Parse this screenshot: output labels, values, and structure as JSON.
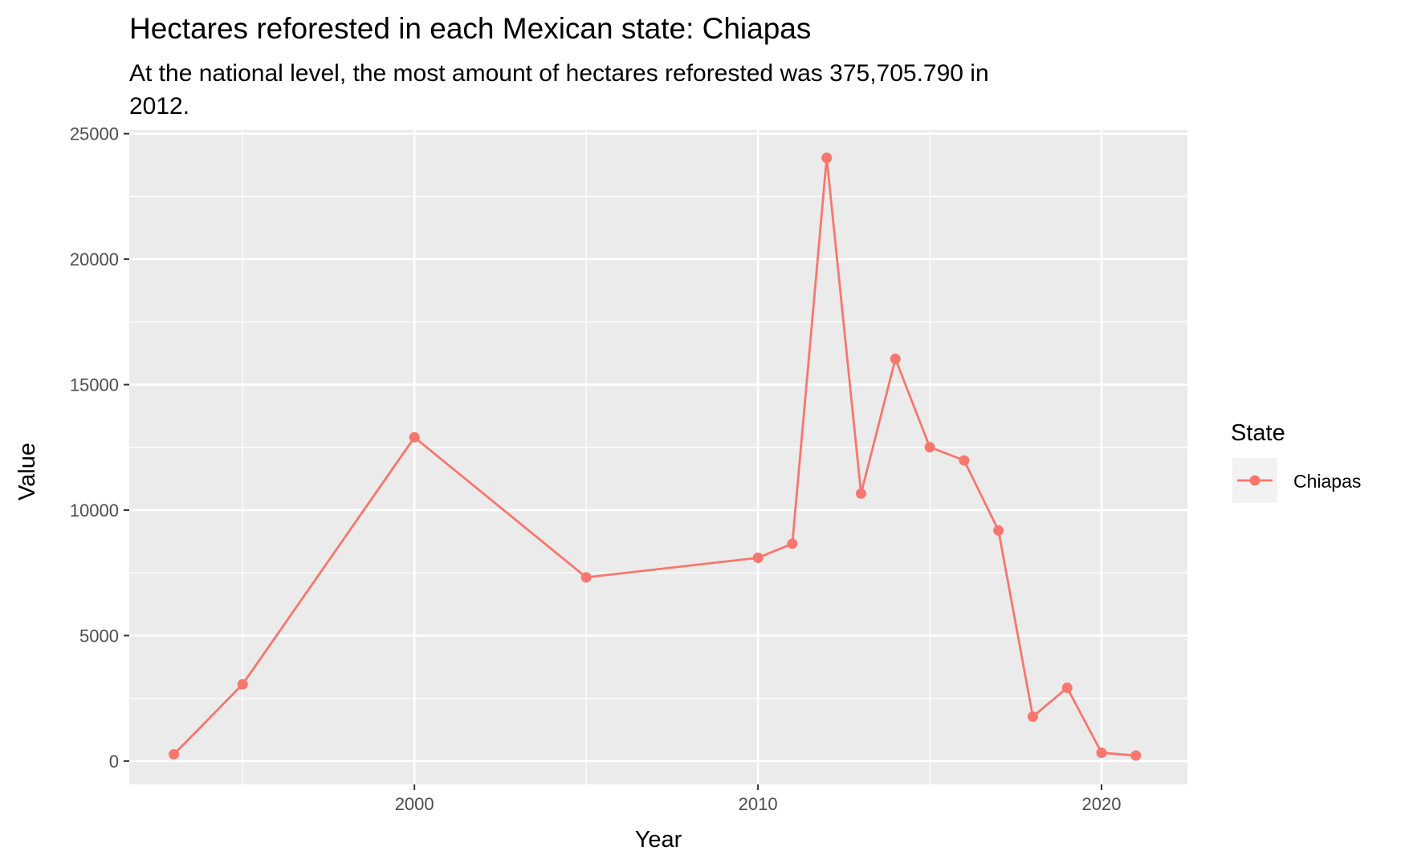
{
  "chart_data": {
    "type": "line",
    "title": "Hectares reforested in each Mexican state: Chiapas",
    "subtitle_lines": [
      "At the national level, the most amount of hectares reforested was 375,705.790 in",
      "2012."
    ],
    "xlabel": "Year",
    "ylabel": "Value",
    "x_ticks": [
      2000,
      2010,
      2020
    ],
    "y_ticks": [
      0,
      5000,
      10000,
      15000,
      20000,
      25000
    ],
    "xlim": [
      1991.7,
      2022.5
    ],
    "ylim": [
      -930,
      25150
    ],
    "grid": true,
    "legend": {
      "title": "State",
      "position": "right"
    },
    "series": [
      {
        "name": "Chiapas",
        "color": "#F8766D",
        "x": [
          1993,
          1995,
          2000,
          2005,
          2010,
          2011,
          2012,
          2013,
          2014,
          2015,
          2016,
          2017,
          2018,
          2019,
          2020,
          2021
        ],
        "values": [
          270,
          3060,
          12900,
          7320,
          8100,
          8660,
          24040,
          10660,
          16030,
          12510,
          11980,
          9190,
          1770,
          2920,
          330,
          220
        ]
      }
    ]
  }
}
